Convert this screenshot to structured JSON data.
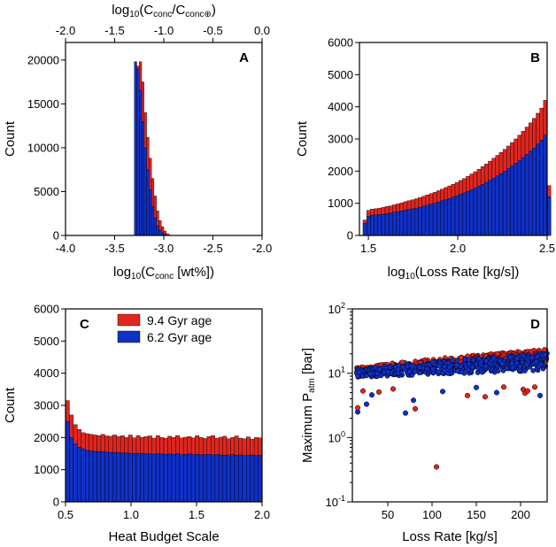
{
  "colors": {
    "red": "#e0261f",
    "blue": "#1030c8"
  },
  "legend": [
    {
      "label": "9.4 Gyr age",
      "color": "red"
    },
    {
      "label": "6.2 Gyr age",
      "color": "blue"
    }
  ],
  "chart_data": [
    {
      "panel": "A",
      "type": "bar",
      "ylabel": "Count",
      "xlabel_main": "log",
      "xlabel_sub": "10",
      "xlabel_rest": "(C",
      "xlabel_sub2": "conc",
      "xlabel_end": " [wt%])",
      "toplabel_main": "log",
      "toplabel_sub": "10",
      "toplabel_rest": "(C",
      "toplabel_sub2": "conc",
      "toplabel_mid": "/C",
      "toplabel_sub3": "conc⊕",
      "toplabel_end": ")",
      "xlim": [
        -4.0,
        -2.0
      ],
      "ylim": [
        0,
        22000
      ],
      "xticks": [
        "-4.0",
        "-3.5",
        "-3.0",
        "-2.5",
        "-2.0"
      ],
      "yticks": [
        "0",
        "5000",
        "10000",
        "15000",
        "20000"
      ],
      "topticks": [
        "-2.0",
        "-1.5",
        "-1.0",
        "-0.5",
        "0.0"
      ],
      "bin_start": -3.3,
      "bin_width": 0.025,
      "series": [
        {
          "name": "9.4 Gyr age",
          "values": [
            0,
            19300,
            19800,
            17500,
            14000,
            11200,
            8800,
            6500,
            4500,
            2800,
            1700,
            1000,
            500,
            200,
            50,
            0
          ]
        },
        {
          "name": "6.2 Gyr age",
          "values": [
            19800,
            19000,
            16500,
            13000,
            10000,
            7500,
            5200,
            3300,
            2000,
            1100,
            600,
            300,
            100,
            30,
            0,
            0
          ]
        }
      ]
    },
    {
      "panel": "B",
      "type": "bar",
      "ylabel": "Count",
      "xlabel_main": "log",
      "xlabel_sub": "10",
      "xlabel_rest": "(Loss Rate [kg/s])",
      "xlim": [
        1.45,
        2.5
      ],
      "ylim": [
        0,
        6000
      ],
      "xticks": [
        "1.5",
        "2.0",
        "2.5"
      ],
      "xtick_values": [
        1.5,
        2.0,
        2.5
      ],
      "yticks": [
        "0",
        "1000",
        "2000",
        "3000",
        "4000",
        "5000",
        "6000"
      ],
      "bin_start": 1.47,
      "bin_width": 0.0206,
      "series": [
        {
          "name": "9.4 Gyr age",
          "values": [
            480,
            780,
            820,
            830,
            850,
            870,
            900,
            920,
            950,
            980,
            1010,
            1050,
            1080,
            1110,
            1140,
            1180,
            1220,
            1260,
            1300,
            1340,
            1390,
            1440,
            1490,
            1540,
            1590,
            1650,
            1710,
            1770,
            1840,
            1910,
            1980,
            2060,
            2140,
            2220,
            2310,
            2400,
            2490,
            2580,
            2680,
            2780,
            2890,
            3000,
            3120,
            3240,
            3370,
            3500,
            3640,
            3800,
            3960,
            4200,
            1550
          ]
        },
        {
          "name": "6.2 Gyr age",
          "values": [
            380,
            600,
            630,
            640,
            650,
            660,
            680,
            700,
            720,
            740,
            760,
            790,
            810,
            830,
            850,
            880,
            910,
            940,
            970,
            1000,
            1040,
            1080,
            1110,
            1150,
            1190,
            1230,
            1280,
            1320,
            1370,
            1420,
            1470,
            1530,
            1590,
            1650,
            1710,
            1780,
            1850,
            1920,
            2000,
            2080,
            2160,
            2240,
            2330,
            2420,
            2520,
            2620,
            2720,
            2840,
            2960,
            3120,
            1200
          ]
        }
      ]
    },
    {
      "panel": "C",
      "type": "bar",
      "ylabel": "Count",
      "xlabel": "Heat Budget Scale",
      "xlim": [
        0.5,
        2.0
      ],
      "ylim": [
        0,
        6000
      ],
      "xticks": [
        "0.5",
        "1.0",
        "1.5",
        "2.0"
      ],
      "xtick_values": [
        0.5,
        1.0,
        1.5,
        2.0
      ],
      "yticks": [
        "0",
        "1000",
        "2000",
        "3000",
        "4000",
        "5000",
        "6000"
      ],
      "bin_start": 0.5,
      "bin_width": 0.03,
      "series": [
        {
          "name": "9.4 Gyr age",
          "values": [
            3150,
            2700,
            2400,
            2250,
            2150,
            2120,
            2100,
            2080,
            2060,
            2100,
            2050,
            2040,
            2080,
            2030,
            2060,
            2000,
            2080,
            1990,
            2060,
            2000,
            2030,
            2050,
            1980,
            2060,
            2000,
            1980,
            2040,
            2000,
            2060,
            1990,
            2010,
            2030,
            1990,
            2060,
            2000,
            1970,
            2030,
            2060,
            1980,
            2010,
            2040,
            1960,
            2000,
            2050,
            1980,
            1960,
            2020,
            1950,
            2000,
            1990
          ]
        },
        {
          "name": "6.2 Gyr age",
          "values": [
            2500,
            2000,
            1800,
            1700,
            1650,
            1600,
            1580,
            1570,
            1560,
            1560,
            1550,
            1540,
            1540,
            1530,
            1520,
            1520,
            1510,
            1500,
            1510,
            1500,
            1500,
            1490,
            1480,
            1500,
            1490,
            1480,
            1490,
            1480,
            1500,
            1470,
            1480,
            1490,
            1470,
            1480,
            1460,
            1470,
            1480,
            1460,
            1470,
            1460,
            1450,
            1460,
            1470,
            1450,
            1460,
            1440,
            1450,
            1460,
            1440,
            1450
          ]
        }
      ]
    },
    {
      "panel": "D",
      "type": "scatter",
      "ylabel_main": "Maximum P",
      "ylabel_sub": "atm",
      "ylabel_end": " [bar]",
      "xlabel": "Loss Rate [kg/s]",
      "xlim": [
        10,
        230
      ],
      "ylim": [
        0.1,
        100
      ],
      "yscale": "log",
      "xticks": [
        "50",
        "100",
        "150",
        "200"
      ],
      "xtick_values": [
        50,
        100,
        150,
        200
      ],
      "yticks": [
        {
          "base": "10",
          "exp": "-1",
          "value": 0.1
        },
        {
          "base": "10",
          "exp": "0",
          "value": 1
        },
        {
          "base": "10",
          "exp": "1",
          "value": 10
        },
        {
          "base": "10",
          "exp": "2",
          "value": 100
        }
      ],
      "band_red": {
        "x_start": 15,
        "x_end": 230,
        "y_low_start": 10.2,
        "y_low_end": 15.5,
        "y_high_start": 12.3,
        "y_high_end": 23.5
      },
      "band_blue": {
        "x_start": 15,
        "x_end": 230,
        "y_low_start": 8.6,
        "y_low_end": 11.0,
        "y_high_start": 11.6,
        "y_high_end": 20.5
      },
      "outliers": [
        {
          "series": "6.2 Gyr age",
          "x": 16,
          "y": 2.5
        },
        {
          "series": "6.2 Gyr age",
          "x": 26,
          "y": 3.3
        },
        {
          "series": "6.2 Gyr age",
          "x": 32,
          "y": 4.6
        },
        {
          "series": "6.2 Gyr age",
          "x": 70,
          "y": 2.4
        },
        {
          "series": "6.2 Gyr age",
          "x": 79,
          "y": 3.8
        },
        {
          "series": "6.2 Gyr age",
          "x": 112,
          "y": 5.2
        },
        {
          "series": "6.2 Gyr age",
          "x": 150,
          "y": 6.0
        },
        {
          "series": "6.2 Gyr age",
          "x": 173,
          "y": 5.0
        },
        {
          "series": "6.2 Gyr age",
          "x": 222,
          "y": 4.5
        },
        {
          "series": "9.4 Gyr age",
          "x": 16,
          "y": 2.9
        },
        {
          "series": "9.4 Gyr age",
          "x": 22,
          "y": 5.3
        },
        {
          "series": "9.4 Gyr age",
          "x": 40,
          "y": 5.1
        },
        {
          "series": "9.4 Gyr age",
          "x": 56,
          "y": 5.7
        },
        {
          "series": "9.4 Gyr age",
          "x": 81,
          "y": 2.8
        },
        {
          "series": "9.4 Gyr age",
          "x": 105,
          "y": 0.35
        },
        {
          "series": "9.4 Gyr age",
          "x": 140,
          "y": 4.5
        },
        {
          "series": "9.4 Gyr age",
          "x": 160,
          "y": 4.3
        },
        {
          "series": "9.4 Gyr age",
          "x": 181,
          "y": 6.1
        },
        {
          "series": "9.4 Gyr age",
          "x": 203,
          "y": 5.6
        },
        {
          "series": "9.4 Gyr age",
          "x": 205,
          "y": 4.9
        },
        {
          "series": "9.4 Gyr age",
          "x": 208,
          "y": 5.3
        },
        {
          "series": "9.4 Gyr age",
          "x": 216,
          "y": 6.1
        }
      ]
    }
  ]
}
